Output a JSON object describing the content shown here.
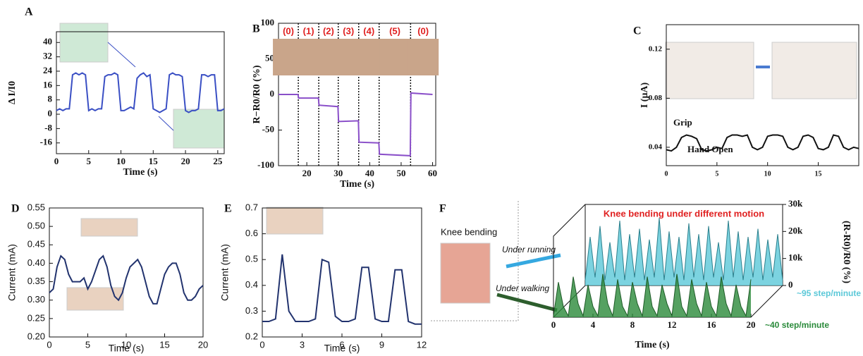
{
  "chart_data": [
    {
      "type": "line",
      "panel": "A",
      "xlabel": "Time (s)",
      "ylabel": "Δ I/I0",
      "xlim": [
        0,
        26
      ],
      "ylim": [
        -22,
        46
      ],
      "xticks": [
        0,
        5,
        10,
        15,
        20,
        25
      ],
      "yticks": [
        40,
        32,
        24,
        16,
        8,
        0,
        -8,
        -16
      ],
      "x": [
        0,
        0.5,
        1,
        1.5,
        2,
        2.5,
        3,
        3.5,
        4,
        4.5,
        5,
        5.5,
        6,
        6.5,
        7,
        7.5,
        8,
        8.5,
        9,
        9.5,
        10,
        10.5,
        11,
        11.5,
        12,
        12.5,
        13,
        13.5,
        14,
        14.5,
        15,
        15.5,
        16,
        16.5,
        17,
        17.5,
        18,
        18.5,
        19,
        19.5,
        20,
        20.5,
        21,
        21.5,
        22,
        22.5,
        23,
        23.5,
        24,
        24.5,
        25,
        25.5,
        26
      ],
      "series": [
        {
          "color": "#3a4fc4",
          "values": [
            2,
            3,
            2,
            3,
            3,
            22,
            23,
            22,
            23,
            22,
            2,
            3,
            2,
            3,
            3,
            21,
            22,
            22,
            23,
            22,
            2,
            2,
            3,
            4,
            3,
            20,
            22,
            23,
            21,
            22,
            3,
            2,
            1,
            2,
            3,
            22,
            23,
            22,
            22,
            21,
            2,
            1,
            2,
            2,
            3,
            22,
            22,
            21,
            22,
            22,
            2,
            2,
            3
          ]
        }
      ]
    },
    {
      "type": "line",
      "panel": "B",
      "xlabel": "Time (s)",
      "ylabel": "R−R0/R0 (%)",
      "xlim": [
        11,
        61
      ],
      "ylim": [
        -100,
        100
      ],
      "xticks": [
        20,
        30,
        40,
        50,
        60
      ],
      "yticks": [
        100,
        50,
        0,
        -50,
        -100
      ],
      "vlines": [
        17.3,
        23.8,
        30,
        36.5,
        43,
        53
      ],
      "annotations": [
        "(0)",
        "(1)",
        "(2)",
        "(3)",
        "(4)",
        "(5)",
        "(0)"
      ],
      "x": [
        11,
        17.2,
        17.4,
        23.7,
        23.9,
        29.9,
        30.1,
        36.4,
        36.6,
        42.9,
        43.1,
        52.9,
        53.1,
        60
      ],
      "series": [
        {
          "color": "#8a4fc9",
          "values": [
            0,
            0,
            -5,
            -5,
            -15,
            -17,
            -38,
            -37,
            -67,
            -68,
            -84,
            -86,
            2,
            0
          ]
        }
      ]
    },
    {
      "type": "line",
      "panel": "C",
      "ylabel": "I (μA)",
      "xlim": [
        0,
        19
      ],
      "ylim": [
        0.025,
        0.14
      ],
      "xticks": [
        0,
        5,
        10,
        15
      ],
      "yticks": [
        0.12,
        0.08,
        0.04
      ],
      "annotations": [
        "Grip",
        "Hand Open"
      ],
      "x": [
        0,
        0.5,
        1,
        1.5,
        2,
        2.5,
        3,
        3.5,
        4,
        4.5,
        5,
        5.5,
        6,
        6.5,
        7,
        7.5,
        8,
        8.5,
        9,
        9.5,
        10,
        10.5,
        11,
        11.5,
        12,
        12.5,
        13,
        13.5,
        14,
        14.5,
        15,
        15.5,
        16,
        16.5,
        17,
        17.5,
        18,
        18.5,
        19
      ],
      "series": [
        {
          "color": "#111111",
          "values": [
            0.038,
            0.037,
            0.04,
            0.048,
            0.05,
            0.049,
            0.047,
            0.038,
            0.037,
            0.038,
            0.04,
            0.039,
            0.048,
            0.05,
            0.05,
            0.049,
            0.05,
            0.04,
            0.038,
            0.04,
            0.049,
            0.05,
            0.05,
            0.049,
            0.04,
            0.038,
            0.04,
            0.049,
            0.05,
            0.048,
            0.039,
            0.038,
            0.04,
            0.05,
            0.049,
            0.04,
            0.038,
            0.04,
            0.039
          ]
        }
      ]
    },
    {
      "type": "line",
      "panel": "D",
      "xlabel": "Time (s)",
      "ylabel": "Current (mA)",
      "xlim": [
        0,
        20
      ],
      "ylim": [
        0.2,
        0.55
      ],
      "xticks": [
        0,
        5,
        10,
        15,
        20
      ],
      "yticks": [
        0.55,
        {
          "value": 0.5,
          "label": "0.50"
        },
        0.45,
        {
          "value": 0.4,
          "label": "0.40"
        },
        0.35,
        {
          "value": 0.3,
          "label": "0.30"
        },
        0.25,
        {
          "value": 0.2,
          "label": "0.20"
        }
      ],
      "x": [
        0,
        0.5,
        1,
        1.5,
        2,
        2.5,
        3,
        3.5,
        4,
        4.5,
        5,
        5.5,
        6,
        6.5,
        7,
        7.5,
        8,
        8.5,
        9,
        9.5,
        10,
        10.5,
        11,
        11.5,
        12,
        12.5,
        13,
        13.5,
        14,
        14.5,
        15,
        15.5,
        16,
        16.5,
        17,
        17.5,
        18,
        18.5,
        19,
        19.5,
        20
      ],
      "series": [
        {
          "color": "#22336e",
          "values": [
            0.32,
            0.33,
            0.39,
            0.42,
            0.41,
            0.37,
            0.35,
            0.35,
            0.35,
            0.36,
            0.33,
            0.35,
            0.38,
            0.41,
            0.42,
            0.39,
            0.34,
            0.31,
            0.3,
            0.32,
            0.36,
            0.39,
            0.4,
            0.41,
            0.39,
            0.35,
            0.31,
            0.29,
            0.29,
            0.33,
            0.37,
            0.39,
            0.4,
            0.4,
            0.37,
            0.32,
            0.3,
            0.3,
            0.31,
            0.33,
            0.34
          ]
        }
      ]
    },
    {
      "type": "line",
      "panel": "E",
      "xlabel": "Time (s)",
      "ylabel": "Current (mA)",
      "xlim": [
        0,
        12
      ],
      "ylim": [
        0.2,
        0.7
      ],
      "xticks": [
        0,
        3,
        6,
        9,
        12
      ],
      "yticks": [
        0.7,
        0.6,
        0.5,
        0.4,
        0.3,
        0.2
      ],
      "x": [
        0,
        0.5,
        1,
        1.5,
        2,
        2.5,
        3,
        3.5,
        4,
        4.5,
        5,
        5.5,
        6,
        6.5,
        7,
        7.5,
        8,
        8.5,
        9,
        9.5,
        10,
        10.5,
        11,
        11.5,
        12
      ],
      "series": [
        {
          "color": "#22336e",
          "values": [
            0.26,
            0.26,
            0.27,
            0.52,
            0.3,
            0.26,
            0.26,
            0.26,
            0.27,
            0.5,
            0.49,
            0.28,
            0.26,
            0.26,
            0.27,
            0.47,
            0.47,
            0.27,
            0.26,
            0.26,
            0.46,
            0.46,
            0.26,
            0.25,
            0.25
          ]
        }
      ]
    },
    {
      "type": "area3d",
      "panel": "F",
      "title": "Knee bending under different motion",
      "xlabel": "Time (s)",
      "ylabel": "(R-R0)/R0 (%)",
      "xlim": [
        0,
        20
      ],
      "ylim": [
        0,
        30000
      ],
      "xticks": [
        0,
        4,
        8,
        12,
        16,
        20
      ],
      "yticks": [
        0,
        {
          "value": 10000,
          "label": "10k"
        },
        {
          "value": 20000,
          "label": "20k"
        },
        {
          "value": 30000,
          "label": "30k"
        }
      ],
      "annotations": [
        "Knee bending",
        "Under running",
        "Under walking"
      ],
      "x": [
        0,
        0.5,
        1,
        1.5,
        2,
        2.5,
        3,
        3.5,
        4,
        4.5,
        5,
        5.5,
        6,
        6.5,
        7,
        7.5,
        8,
        8.5,
        9,
        9.5,
        10,
        10.5,
        11,
        11.5,
        12,
        12.5,
        13,
        13.5,
        14,
        14.5,
        15,
        15.5,
        16,
        16.5,
        17,
        17.5,
        18,
        18.5,
        19,
        19.5,
        20
      ],
      "series": [
        {
          "name": "~95 step/minute",
          "color": "#5bc8d8",
          "values": [
            2000,
            18000,
            3000,
            22000,
            2000,
            16000,
            3000,
            24000,
            2000,
            19000,
            3000,
            21000,
            2000,
            17000,
            3000,
            25000,
            2000,
            20000,
            3000,
            18000,
            2000,
            23000,
            3000,
            19000,
            2000,
            22000,
            3000,
            16000,
            2000,
            24000,
            3000,
            20000,
            2000,
            18000,
            3000,
            21000,
            2000,
            17000,
            3000,
            19000,
            2000
          ]
        },
        {
          "name": "~40 step/minute",
          "color": "#2a8a3a",
          "values": [
            500,
            13000,
            4000,
            500,
            15000,
            5000,
            500,
            12000,
            4000,
            500,
            16000,
            5000,
            500,
            14000,
            4000,
            500,
            13000,
            5000,
            500,
            15000,
            4000,
            500,
            12000,
            5000,
            500,
            16000,
            4000,
            500,
            14000,
            5000,
            500,
            13000,
            4000,
            500,
            15000,
            5000,
            500,
            12000,
            4000,
            500,
            14000
          ]
        }
      ]
    }
  ]
}
